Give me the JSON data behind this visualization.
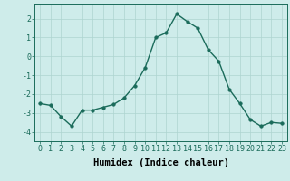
{
  "title": "",
  "xlabel": "Humidex (Indice chaleur)",
  "x": [
    0,
    1,
    2,
    3,
    4,
    5,
    6,
    7,
    8,
    9,
    10,
    11,
    12,
    13,
    14,
    15,
    16,
    17,
    18,
    19,
    20,
    21,
    22,
    23
  ],
  "y": [
    -2.5,
    -2.6,
    -3.2,
    -3.7,
    -2.85,
    -2.85,
    -2.7,
    -2.55,
    -2.2,
    -1.55,
    -0.6,
    1.0,
    1.25,
    2.25,
    1.85,
    1.5,
    0.35,
    -0.25,
    -1.75,
    -2.5,
    -3.35,
    -3.7,
    -3.5,
    -3.55
  ],
  "line_color": "#1a6b5a",
  "marker_size": 2.5,
  "bg_color": "#ceecea",
  "grid_color": "#aed4d0",
  "ylim": [
    -4.5,
    2.8
  ],
  "xlim": [
    -0.5,
    23.5
  ],
  "yticks": [
    -4,
    -3,
    -2,
    -1,
    0,
    1,
    2
  ],
  "xticks": [
    0,
    1,
    2,
    3,
    4,
    5,
    6,
    7,
    8,
    9,
    10,
    11,
    12,
    13,
    14,
    15,
    16,
    17,
    18,
    19,
    20,
    21,
    22,
    23
  ],
  "tick_fontsize": 6,
  "label_fontsize": 7.5
}
